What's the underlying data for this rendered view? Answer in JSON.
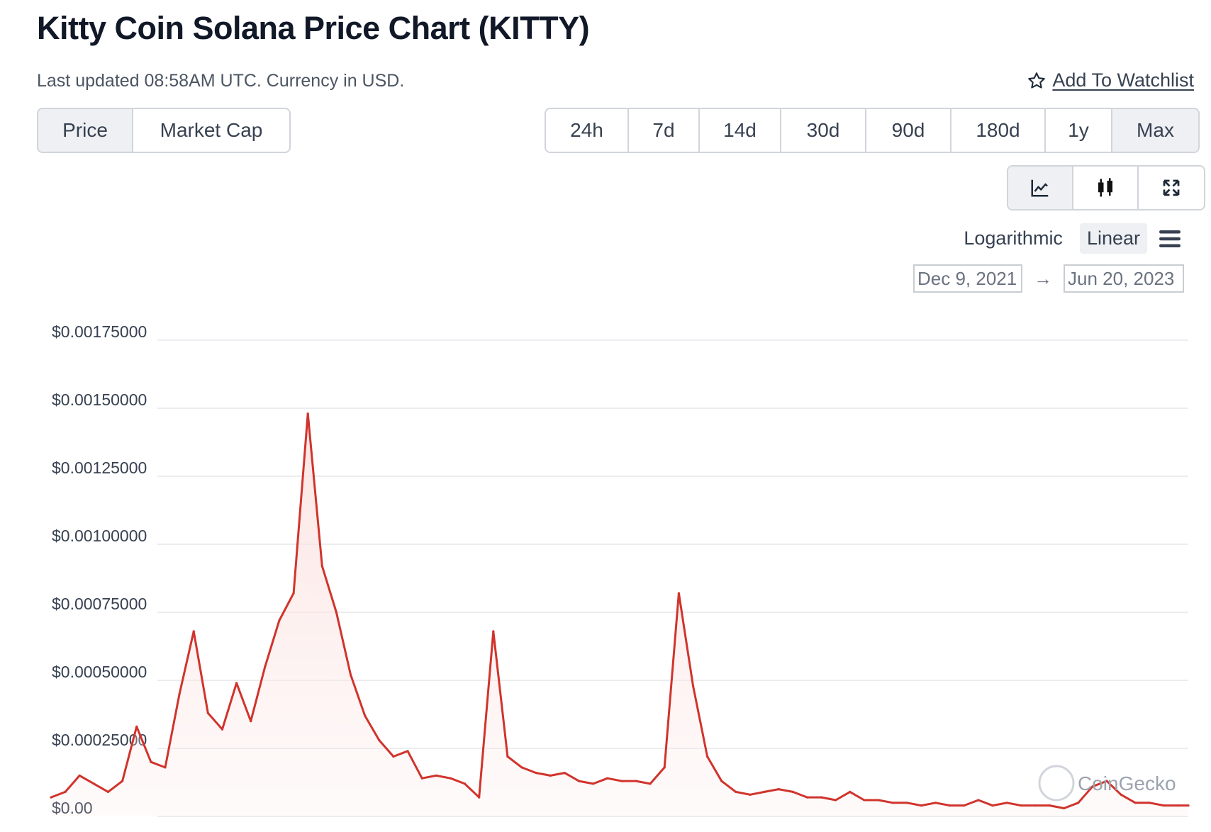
{
  "header": {
    "title": "Kitty Coin Solana Price Chart (KITTY)",
    "subtitle": "Last updated 08:58AM UTC. Currency in USD.",
    "watchlist_label": "Add To Watchlist"
  },
  "metric_tabs": [
    {
      "label": "Price",
      "active": true
    },
    {
      "label": "Market Cap",
      "active": false
    }
  ],
  "range_tabs": [
    {
      "label": "24h",
      "active": false
    },
    {
      "label": "7d",
      "active": false
    },
    {
      "label": "14d",
      "active": false
    },
    {
      "label": "30d",
      "active": false
    },
    {
      "label": "90d",
      "active": false
    },
    {
      "label": "180d",
      "active": false
    },
    {
      "label": "1y",
      "active": false
    },
    {
      "label": "Max",
      "active": true
    }
  ],
  "chart_types": [
    {
      "icon": "line-chart-icon",
      "active": true
    },
    {
      "icon": "candlestick-icon",
      "active": false
    },
    {
      "icon": "fullscreen-icon",
      "active": false
    }
  ],
  "scale": {
    "options": [
      "Logarithmic",
      "Linear"
    ],
    "selected": "Linear"
  },
  "date_range": {
    "from": "Dec 9, 2021",
    "to": "Jun 20, 2023",
    "arrow": "→"
  },
  "watermark": "CoinGecko",
  "colors": {
    "line": "#d0342c",
    "fill": "#fbe3e1",
    "grid": "#e5e7eb",
    "active_bg": "#eef0f3"
  },
  "chart_data": {
    "type": "area",
    "series": [
      {
        "x": [
          "2021-12-09",
          "2021-12-16",
          "2021-12-23",
          "2021-12-30",
          "2022-01-06",
          "2022-01-13",
          "2022-01-20",
          "2022-01-27",
          "2022-02-03",
          "2022-02-10",
          "2022-02-17",
          "2022-02-24",
          "2022-03-03",
          "2022-03-10",
          "2022-03-17",
          "2022-03-24",
          "2022-03-31",
          "2022-04-07",
          "2022-04-14",
          "2022-04-21",
          "2022-04-28",
          "2022-05-05",
          "2022-05-12",
          "2022-05-19",
          "2022-05-26",
          "2022-06-02",
          "2022-06-09",
          "2022-06-16",
          "2022-06-23",
          "2022-06-30",
          "2022-07-07",
          "2022-07-14",
          "2022-07-21",
          "2022-07-28",
          "2022-08-04",
          "2022-08-11",
          "2022-08-18",
          "2022-08-25",
          "2022-09-01",
          "2022-09-08",
          "2022-09-15",
          "2022-09-22",
          "2022-09-29",
          "2022-10-06",
          "2022-10-13",
          "2022-10-20",
          "2022-10-27",
          "2022-11-03",
          "2022-11-10",
          "2022-11-17",
          "2022-11-24",
          "2022-12-01",
          "2022-12-08",
          "2022-12-15",
          "2022-12-22",
          "2022-12-29",
          "2023-01-05",
          "2023-01-12",
          "2023-01-19",
          "2023-01-26",
          "2023-02-02",
          "2023-02-09",
          "2023-02-16",
          "2023-02-23",
          "2023-03-02",
          "2023-03-09",
          "2023-03-16",
          "2023-03-23",
          "2023-03-30",
          "2023-04-06",
          "2023-04-13",
          "2023-04-20",
          "2023-04-27",
          "2023-05-04",
          "2023-05-11",
          "2023-05-18",
          "2023-05-25",
          "2023-06-01",
          "2023-06-08",
          "2023-06-15",
          "2023-06-20"
        ],
        "y": [
          7e-05,
          9e-05,
          0.00015,
          0.00012,
          9e-05,
          0.00013,
          0.00033,
          0.0002,
          0.00018,
          0.00045,
          0.00068,
          0.00038,
          0.00032,
          0.00049,
          0.00035,
          0.00055,
          0.00072,
          0.00082,
          0.00148,
          0.00092,
          0.00075,
          0.00052,
          0.00037,
          0.00028,
          0.00022,
          0.00024,
          0.00014,
          0.00015,
          0.00014,
          0.00012,
          7e-05,
          0.00068,
          0.00022,
          0.00018,
          0.00016,
          0.00015,
          0.00016,
          0.00013,
          0.00012,
          0.00014,
          0.00013,
          0.00013,
          0.00012,
          0.00018,
          0.00082,
          0.00048,
          0.00022,
          0.00013,
          9e-05,
          8e-05,
          9e-05,
          0.0001,
          9e-05,
          7e-05,
          7e-05,
          6e-05,
          9e-05,
          6e-05,
          6e-05,
          5e-05,
          5e-05,
          4e-05,
          5e-05,
          4e-05,
          4e-05,
          6e-05,
          4e-05,
          5e-05,
          4e-05,
          4e-05,
          4e-05,
          3e-05,
          5e-05,
          0.00011,
          0.00013,
          8e-05,
          5e-05,
          5e-05,
          4e-05,
          4e-05,
          4e-05
        ]
      }
    ],
    "y_ticks": [
      "$0.00",
      "$0.00025000",
      "$0.00050000",
      "$0.00075000",
      "$0.00100000",
      "$0.00125000",
      "$0.00150000",
      "$0.00175000"
    ],
    "y_tick_values": [
      0,
      0.00025,
      0.0005,
      0.00075,
      0.001,
      0.00125,
      0.0015,
      0.00175
    ],
    "ylim": [
      0,
      0.00175
    ],
    "xlim": [
      "2021-12-09",
      "2023-06-20"
    ],
    "grid": true,
    "legend": "none"
  }
}
